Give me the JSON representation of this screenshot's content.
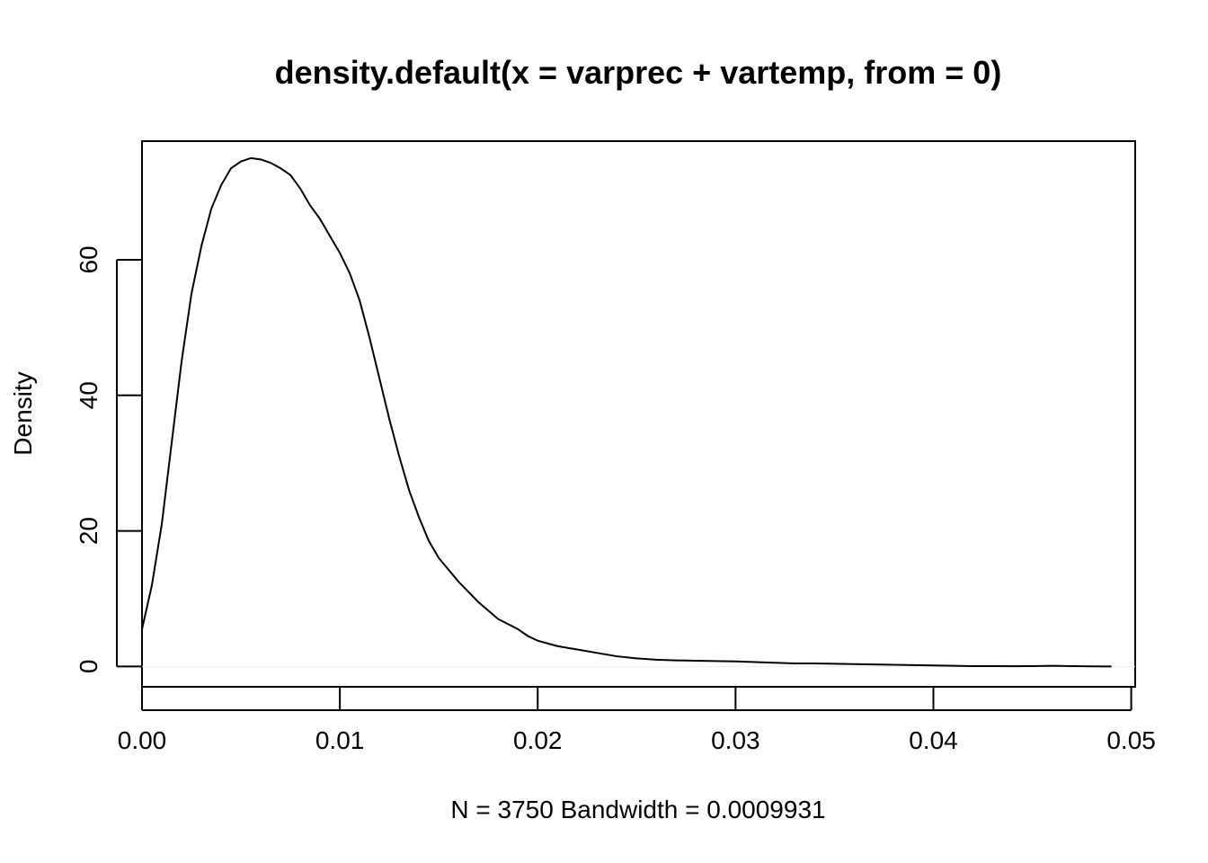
{
  "chart_data": {
    "type": "line",
    "title": "density.default(x = varprec + vartemp, from = 0)",
    "xlabel": "N = 3750   Bandwidth = 0.0009931",
    "ylabel": "Density",
    "xlim": [
      0.0,
      0.0502
    ],
    "ylim": [
      -3,
      77.5
    ],
    "xticks": [
      0.0,
      0.01,
      0.02,
      0.03,
      0.04,
      0.05
    ],
    "xtick_labels": [
      "0.00",
      "0.01",
      "0.02",
      "0.03",
      "0.04",
      "0.05"
    ],
    "yticks": [
      0,
      20,
      40,
      60
    ],
    "ytick_labels": [
      "0",
      "20",
      "40",
      "60"
    ],
    "grid": false,
    "legend": "none",
    "series": [
      {
        "x": [
          0.0,
          0.0005,
          0.001,
          0.0015,
          0.002,
          0.0025,
          0.003,
          0.0035,
          0.004,
          0.0045,
          0.005,
          0.0055,
          0.006,
          0.0065,
          0.007,
          0.0075,
          0.008,
          0.0085,
          0.009,
          0.0095,
          0.01,
          0.0105,
          0.011,
          0.0115,
          0.012,
          0.0125,
          0.013,
          0.0135,
          0.014,
          0.0145,
          0.015,
          0.016,
          0.017,
          0.018,
          0.019,
          0.0195,
          0.02,
          0.021,
          0.022,
          0.023,
          0.024,
          0.025,
          0.026,
          0.027,
          0.028,
          0.029,
          0.03,
          0.031,
          0.032,
          0.033,
          0.034,
          0.035,
          0.036,
          0.037,
          0.038,
          0.039,
          0.04,
          0.041,
          0.042,
          0.043,
          0.044,
          0.045,
          0.046,
          0.047,
          0.048,
          0.049
        ],
        "y": [
          5.5,
          12,
          21,
          33,
          45,
          55,
          62,
          67.5,
          71,
          73.5,
          74.5,
          75,
          74.8,
          74.3,
          73.5,
          72.5,
          70.5,
          68,
          66,
          63.5,
          61,
          58,
          54,
          48.5,
          42.5,
          36.5,
          31,
          26,
          22,
          18.5,
          16,
          12.5,
          9.5,
          7,
          5.5,
          4.5,
          3.8,
          3,
          2.5,
          2,
          1.5,
          1.2,
          1.0,
          0.9,
          0.85,
          0.8,
          0.75,
          0.65,
          0.55,
          0.45,
          0.45,
          0.4,
          0.35,
          0.3,
          0.25,
          0.2,
          0.15,
          0.1,
          0.05,
          0.05,
          0.03,
          0.05,
          0.1,
          0.05,
          0.02,
          0.0
        ]
      }
    ]
  }
}
